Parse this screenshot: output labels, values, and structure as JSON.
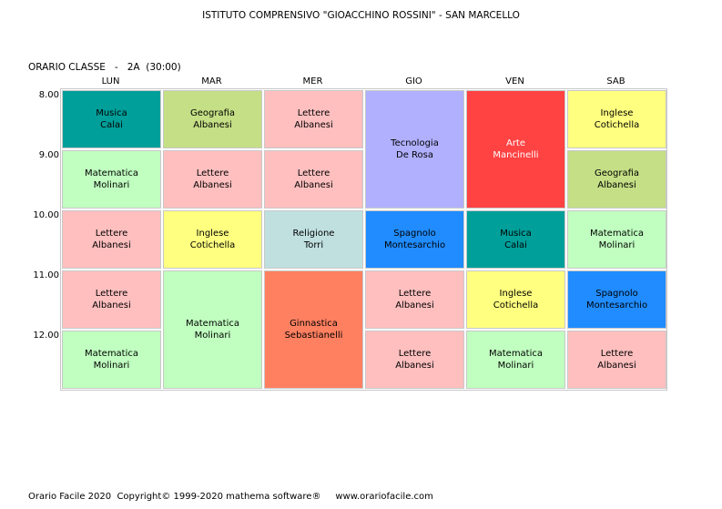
{
  "header": {
    "school": "ISTITUTO COMPRENSIVO \"GIOACCHINO ROSSINI\" - SAN MARCELLO",
    "class_label": "ORARIO CLASSE   -   2A  (30:00)"
  },
  "days": [
    "LUN",
    "MAR",
    "MER",
    "GIO",
    "VEN",
    "SAB"
  ],
  "times": [
    "8.00",
    "9.00",
    "10.00",
    "11.00",
    "12.00"
  ],
  "colors": {
    "teal": "#009f9a",
    "olive_green": "#c4df85",
    "pink": "#ffbfbf",
    "lavender": "#b0b0ff",
    "red": "#ff4242",
    "yellow": "#ffff80",
    "light_green": "#c0ffc0",
    "light_cyan": "#c0e0e0",
    "blue": "#208cff",
    "salmon": "#ff8060"
  },
  "lessons": [
    {
      "subject": "Musica",
      "teacher": "Calai",
      "day": 0,
      "start": 0,
      "span": 1,
      "color": "#009f9a"
    },
    {
      "subject": "Matematica",
      "teacher": "Molinari",
      "day": 0,
      "start": 1,
      "span": 1,
      "color": "#c0ffc0"
    },
    {
      "subject": "Lettere",
      "teacher": "Albanesi",
      "day": 0,
      "start": 2,
      "span": 1,
      "color": "#ffbfbf"
    },
    {
      "subject": "Lettere",
      "teacher": "Albanesi",
      "day": 0,
      "start": 3,
      "span": 1,
      "color": "#ffbfbf"
    },
    {
      "subject": "Matematica",
      "teacher": "Molinari",
      "day": 0,
      "start": 4,
      "span": 1,
      "color": "#c0ffc0"
    },
    {
      "subject": "Geografia",
      "teacher": "Albanesi",
      "day": 1,
      "start": 0,
      "span": 1,
      "color": "#c4df85"
    },
    {
      "subject": "Lettere",
      "teacher": "Albanesi",
      "day": 1,
      "start": 1,
      "span": 1,
      "color": "#ffbfbf"
    },
    {
      "subject": "Inglese",
      "teacher": "Cotichella",
      "day": 1,
      "start": 2,
      "span": 1,
      "color": "#ffff80"
    },
    {
      "subject": "Matematica",
      "teacher": "Molinari",
      "day": 1,
      "start": 3,
      "span": 2,
      "color": "#c0ffc0"
    },
    {
      "subject": "Lettere",
      "teacher": "Albanesi",
      "day": 2,
      "start": 0,
      "span": 1,
      "color": "#ffbfbf"
    },
    {
      "subject": "Lettere",
      "teacher": "Albanesi",
      "day": 2,
      "start": 1,
      "span": 1,
      "color": "#ffbfbf"
    },
    {
      "subject": "Religione",
      "teacher": "Torri",
      "day": 2,
      "start": 2,
      "span": 1,
      "color": "#c0e0e0"
    },
    {
      "subject": "Ginnastica",
      "teacher": "Sebastianelli",
      "day": 2,
      "start": 3,
      "span": 2,
      "color": "#ff8060"
    },
    {
      "subject": "Tecnologia",
      "teacher": "De Rosa",
      "day": 3,
      "start": 0,
      "span": 2,
      "color": "#b0b0ff"
    },
    {
      "subject": "Spagnolo",
      "teacher": "Montesarchio",
      "day": 3,
      "start": 2,
      "span": 1,
      "color": "#208cff"
    },
    {
      "subject": "Lettere",
      "teacher": "Albanesi",
      "day": 3,
      "start": 3,
      "span": 1,
      "color": "#ffbfbf"
    },
    {
      "subject": "Lettere",
      "teacher": "Albanesi",
      "day": 3,
      "start": 4,
      "span": 1,
      "color": "#ffbfbf"
    },
    {
      "subject": "Arte",
      "teacher": "Mancinelli",
      "day": 4,
      "start": 0,
      "span": 2,
      "color": "#ff4242",
      "text_color": "#ffffff"
    },
    {
      "subject": "Musica",
      "teacher": "Calai",
      "day": 4,
      "start": 2,
      "span": 1,
      "color": "#009f9a"
    },
    {
      "subject": "Inglese",
      "teacher": "Cotichella",
      "day": 4,
      "start": 3,
      "span": 1,
      "color": "#ffff80"
    },
    {
      "subject": "Matematica",
      "teacher": "Molinari",
      "day": 4,
      "start": 4,
      "span": 1,
      "color": "#c0ffc0"
    },
    {
      "subject": "Inglese",
      "teacher": "Cotichella",
      "day": 5,
      "start": 0,
      "span": 1,
      "color": "#ffff80"
    },
    {
      "subject": "Geografia",
      "teacher": "Albanesi",
      "day": 5,
      "start": 1,
      "span": 1,
      "color": "#c4df85"
    },
    {
      "subject": "Matematica",
      "teacher": "Molinari",
      "day": 5,
      "start": 2,
      "span": 1,
      "color": "#c0ffc0"
    },
    {
      "subject": "Spagnolo",
      "teacher": "Montesarchio",
      "day": 5,
      "start": 3,
      "span": 1,
      "color": "#208cff"
    },
    {
      "subject": "Lettere",
      "teacher": "Albanesi",
      "day": 5,
      "start": 4,
      "span": 1,
      "color": "#ffbfbf"
    }
  ],
  "footer": "Orario Facile 2020  Copyright© 1999-2020 mathema software®     www.orariofacile.com"
}
